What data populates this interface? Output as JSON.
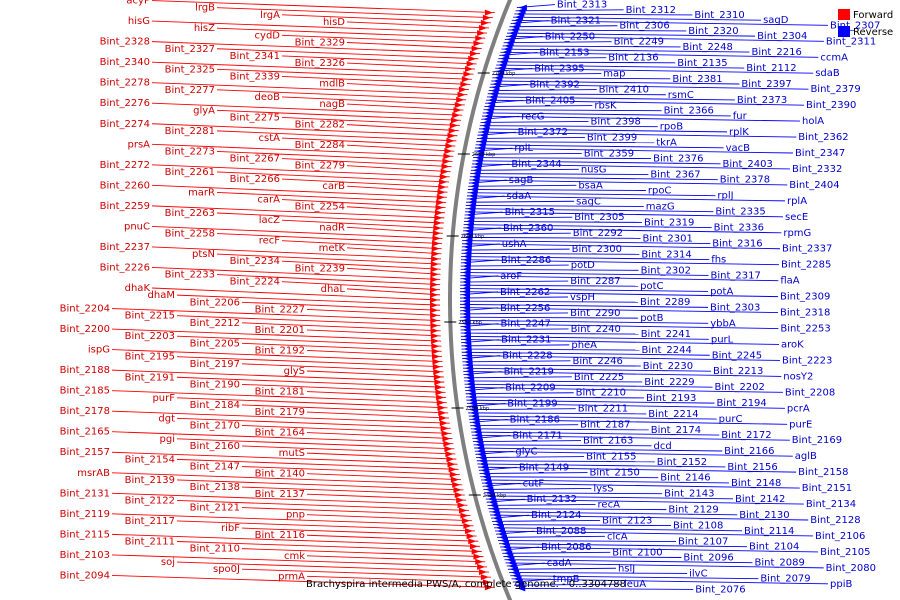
{
  "caption": "Brachyspira intermedia PWS/A, complete genome. - 0..3304788",
  "legend": [
    {
      "label": "Forward",
      "color": "#ff0000"
    },
    {
      "label": "Reverse",
      "color": "#0000ff"
    }
  ],
  "colors": {
    "forward_line": "#ff0000",
    "forward_text": "#cc0000",
    "reverse_line": "#0000ff",
    "reverse_text": "#0000cc",
    "backbone": "#7f7f7f"
  },
  "ticks": [
    "2700 kbp",
    "2650 kbp",
    "2600 kbp",
    "2550 kbp",
    "2500 kbp",
    "2450 kbp"
  ],
  "forward_labels": [
    "acyP",
    "lrgB",
    "lrgA",
    "hisD",
    "hisG",
    "hisZ",
    "cydD",
    "Bint_2329",
    "Bint_2328",
    "Bint_2327",
    "Bint_2341",
    "Bint_2326",
    "Bint_2340",
    "Bint_2325",
    "Bint_2339",
    "mdlB",
    "Bint_2278",
    "Bint_2277",
    "deoB",
    "nagB",
    "Bint_2276",
    "glyA",
    "Bint_2275",
    "Bint_2282",
    "Bint_2274",
    "Bint_2281",
    "cstA",
    "Bint_2284",
    "prsA",
    "Bint_2273",
    "Bint_2267",
    "Bint_2279",
    "Bint_2272",
    "Bint_2261",
    "Bint_2266",
    "carB",
    "Bint_2260",
    "marR",
    "carA",
    "Bint_2254",
    "Bint_2259",
    "Bint_2263",
    "lacZ",
    "nadR",
    "pnuC",
    "Bint_2258",
    "recF",
    "metK",
    "Bint_2237",
    "ptsN",
    "Bint_2234",
    "Bint_2239",
    "Bint_2226",
    "Bint_2233",
    "Bint_2224",
    "dhaL",
    "dhaK",
    "dhaM",
    "Bint_2206",
    "Bint_2227",
    "Bint_2204",
    "Bint_2215",
    "Bint_2212",
    "Bint_2201",
    "Bint_2200",
    "Bint_2203",
    "Bint_2205",
    "Bint_2192",
    "ispG",
    "Bint_2195",
    "Bint_2197",
    "glyS",
    "Bint_2188",
    "Bint_2191",
    "Bint_2190",
    "Bint_2181",
    "Bint_2185",
    "purF",
    "Bint_2184",
    "Bint_2179",
    "Bint_2178",
    "dgt",
    "Bint_2170",
    "Bint_2164",
    "Bint_2165",
    "pgi",
    "Bint_2160",
    "mutS",
    "Bint_2157",
    "Bint_2154",
    "Bint_2147",
    "Bint_2140",
    "msrAB",
    "Bint_2139",
    "Bint_2138",
    "Bint_2137",
    "Bint_2131",
    "Bint_2122",
    "Bint_2121",
    "pnp",
    "Bint_2119",
    "Bint_2117",
    "ribF",
    "Bint_2116",
    "Bint_2115",
    "Bint_2111",
    "Bint_2110",
    "cmk",
    "Bint_2103",
    "soj",
    "spo0J",
    "prmA",
    "Bint_2094"
  ],
  "reverse_labels": [
    "Bint_2313",
    "Bint_2312",
    "Bint_2310",
    "sagD",
    "Bint_2307",
    "Bint_2321",
    "Bint_2306",
    "Bint_2320",
    "Bint_2304",
    "Bint_2311",
    "Bint_2250",
    "Bint_2249",
    "Bint_2248",
    "Bint_2216",
    "ccmA",
    "Bint_2153",
    "Bint_2136",
    "Bint_2135",
    "Bint_2112",
    "sdaB",
    "Bint_2395",
    "map",
    "Bint_2381",
    "Bint_2397",
    "Bint_2379",
    "Bint_2392",
    "Bint_2410",
    "rsmC",
    "Bint_2373",
    "Bint_2390",
    "Bint_2405",
    "rbsK",
    "Bint_2366",
    "fur",
    "holA",
    "recG",
    "Bint_2398",
    "rpoB",
    "rplK",
    "Bint_2362",
    "Bint_2372",
    "Bint_2399",
    "tkrA",
    "vacB",
    "Bint_2347",
    "rplL",
    "Bint_2359",
    "Bint_2376",
    "Bint_2403",
    "Bint_2332",
    "Bint_2344",
    "nusG",
    "Bint_2367",
    "Bint_2378",
    "Bint_2404",
    "sagB",
    "bsaA",
    "rpoC",
    "rplJ",
    "rplA",
    "sdaA",
    "sagC",
    "mazG",
    "Bint_2335",
    "secE",
    "Bint_2315",
    "Bint_2305",
    "Bint_2319",
    "Bint_2336",
    "rpmG",
    "Bint_2360",
    "Bint_2292",
    "Bint_2301",
    "Bint_2316",
    "Bint_2337",
    "ushA",
    "Bint_2300",
    "Bint_2314",
    "fhs",
    "Bint_2285",
    "Bint_2286",
    "potD",
    "Bint_2302",
    "Bint_2317",
    "flaA",
    "aroF",
    "Bint_2287",
    "potC",
    "potA",
    "Bint_2309",
    "Bint_2262",
    "vspH",
    "Bint_2289",
    "Bint_2303",
    "Bint_2318",
    "Bint_2256",
    "Bint_2290",
    "potB",
    "ybbA",
    "Bint_2253",
    "Bint_2247",
    "Bint_2240",
    "Bint_2241",
    "purL",
    "aroK",
    "Bint_2231",
    "pheA",
    "Bint_2244",
    "Bint_2245",
    "Bint_2223",
    "Bint_2228",
    "Bint_2246",
    "Bint_2230",
    "Bint_2213",
    "nosY2",
    "Bint_2219",
    "Bint_2225",
    "Bint_2229",
    "Bint_2202",
    "Bint_2208",
    "Bint_2209",
    "Bint_2210",
    "Bint_2193",
    "Bint_2194",
    "pcrA",
    "Bint_2199",
    "Bint_2211",
    "Bint_2214",
    "purC",
    "purE",
    "Bint_2186",
    "Bint_2187",
    "Bint_2174",
    "Bint_2172",
    "Bint_2169",
    "Bint_2171",
    "Bint_2163",
    "dcd",
    "Bint_2166",
    "aglB",
    "glyC",
    "Bint_2155",
    "Bint_2152",
    "Bint_2156",
    "Bint_2158",
    "Bint_2149",
    "Bint_2150",
    "Bint_2146",
    "Bint_2148",
    "Bint_2151",
    "cutF",
    "lysS",
    "Bint_2143",
    "Bint_2142",
    "Bint_2134",
    "Bint_2132",
    "recA",
    "Bint_2129",
    "Bint_2130",
    "Bint_2128",
    "Bint_2124",
    "Bint_2123",
    "Bint_2108",
    "Bint_2114",
    "Bint_2106",
    "Bint_2088",
    "clcA",
    "Bint_2107",
    "Bint_2104",
    "Bint_2105",
    "Bint_2086",
    "Bint_2100",
    "Bint_2096",
    "Bint_2089",
    "Bint_2080",
    "cadA",
    "hslJ",
    "ilvC",
    "Bint_2079",
    "ppiB",
    "tmpB",
    "leuA",
    "Bint_2076"
  ]
}
